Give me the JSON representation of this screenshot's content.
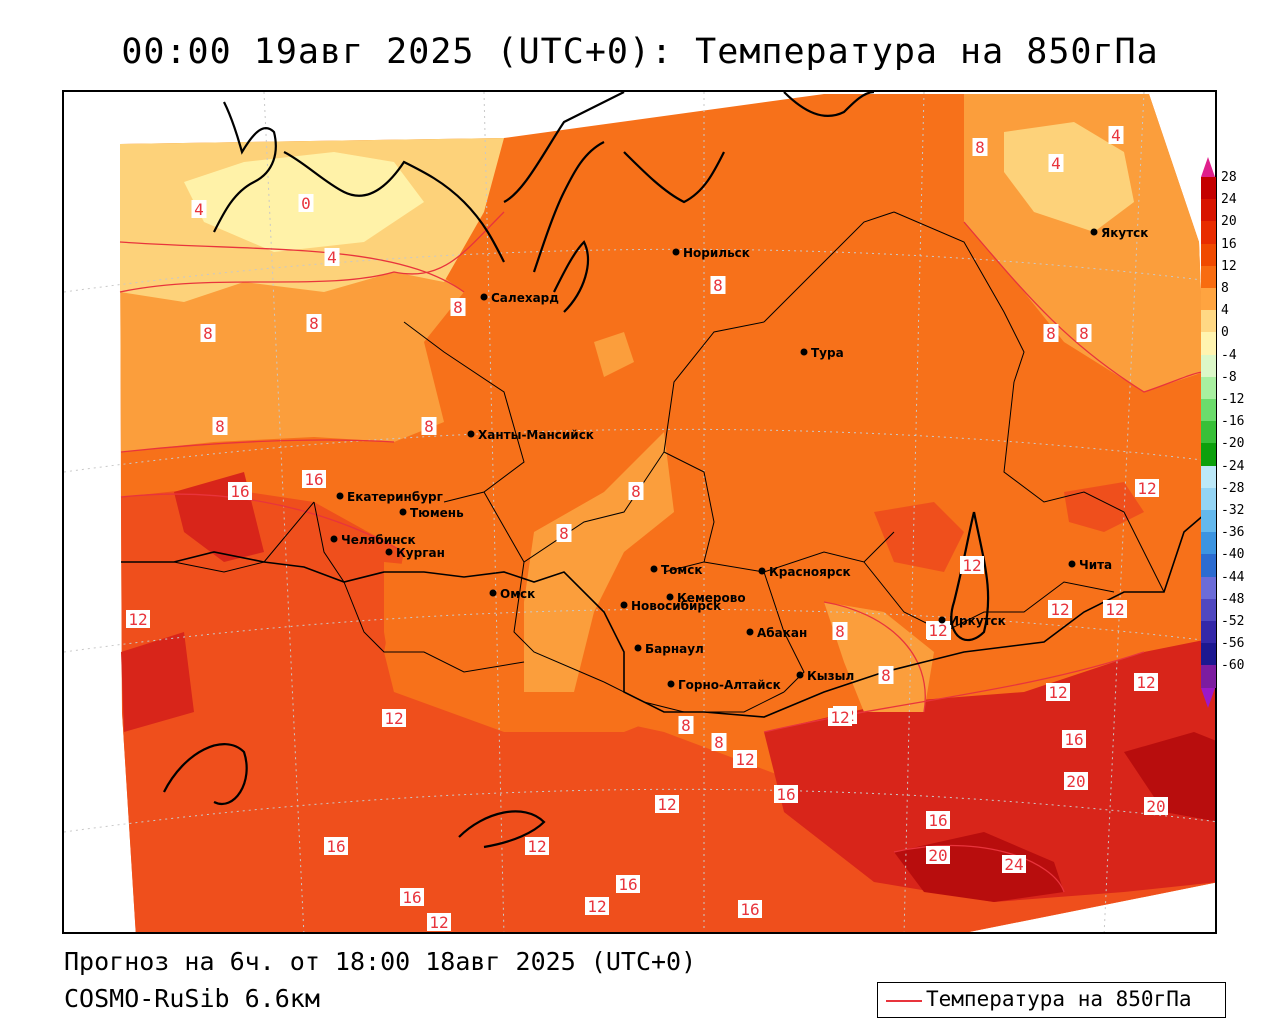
{
  "header": {
    "title": "00:00 19авг 2025 (UTC+0): Температура на 850гПа"
  },
  "footer": {
    "forecast_text": "Прогноз на 6ч. от 18:00 18авг 2025 (UTC+0)",
    "model_text": "COSMO-RuSib 6.6км"
  },
  "legend": {
    "label": "Температура на 850гПа",
    "line_color": "#e8343c"
  },
  "colorbar": {
    "levels": [
      "28",
      "24",
      "20",
      "16",
      "12",
      "8",
      "4",
      "0",
      "-4",
      "-8",
      "-12",
      "-16",
      "-20",
      "-24",
      "-28",
      "-32",
      "-36",
      "-40",
      "-44",
      "-48",
      "-52",
      "-56",
      "-60"
    ],
    "colors": [
      "#c40000",
      "#d81400",
      "#e82c00",
      "#f04a00",
      "#f86c10",
      "#ffa440",
      "#ffd884",
      "#fff4b0",
      "#dcf8c8",
      "#a8f0a0",
      "#6cdc6c",
      "#38c038",
      "#0ca00c",
      "#bce8f8",
      "#94d4f4",
      "#64b8ec",
      "#3c94e0",
      "#2c6cd0",
      "#6c6cd8",
      "#5048c0",
      "#3428a8",
      "#1c1890",
      "#7c1ca0"
    ],
    "top_arrow_color": "#e0208c",
    "bottom_arrow_color": "#9c18c8"
  },
  "map": {
    "colors": {
      "c0": "#fff2a8",
      "c4": "#fdd27a",
      "c8": "#fb9e3c",
      "c12": "#f7711a",
      "c16": "#ef4f1c",
      "c20": "#d8251a",
      "c24": "#b80d0d",
      "isoline": "#e8343c",
      "border": "#000000",
      "coast": "#000000",
      "grid": "#c8c8c8"
    },
    "cities": [
      {
        "name": "Норильск"
      },
      {
        "name": "Салехард"
      },
      {
        "name": "Тура"
      },
      {
        "name": "Якутск"
      },
      {
        "name": "Ханты-Мансийск"
      },
      {
        "name": "Екатеринбург"
      },
      {
        "name": "Тюмень"
      },
      {
        "name": "Челябинск"
      },
      {
        "name": "Курган"
      },
      {
        "name": "Омск"
      },
      {
        "name": "Томск"
      },
      {
        "name": "Красноярск"
      },
      {
        "name": "Новосибирск"
      },
      {
        "name": "Кемерово"
      },
      {
        "name": "Барнаул"
      },
      {
        "name": "Абакан"
      },
      {
        "name": "Иркутск"
      },
      {
        "name": "Чита"
      },
      {
        "name": "Горно-Алтайск"
      },
      {
        "name": "Кызыл"
      }
    ],
    "contour_labels": [
      "4",
      "0",
      "4",
      "8",
      "8",
      "8",
      "8",
      "8",
      "8",
      "4",
      "4",
      "8",
      "8",
      "8",
      "8",
      "8",
      "16",
      "16",
      "12",
      "12",
      "12",
      "12",
      "16",
      "16",
      "12",
      "16",
      "12",
      "16",
      "12",
      "16",
      "20",
      "20",
      "16",
      "20",
      "24",
      "12",
      "12",
      "16",
      "12",
      "12",
      "12",
      "12",
      "12",
      "8",
      "8",
      "8",
      "8",
      "12",
      "12",
      "12"
    ]
  }
}
